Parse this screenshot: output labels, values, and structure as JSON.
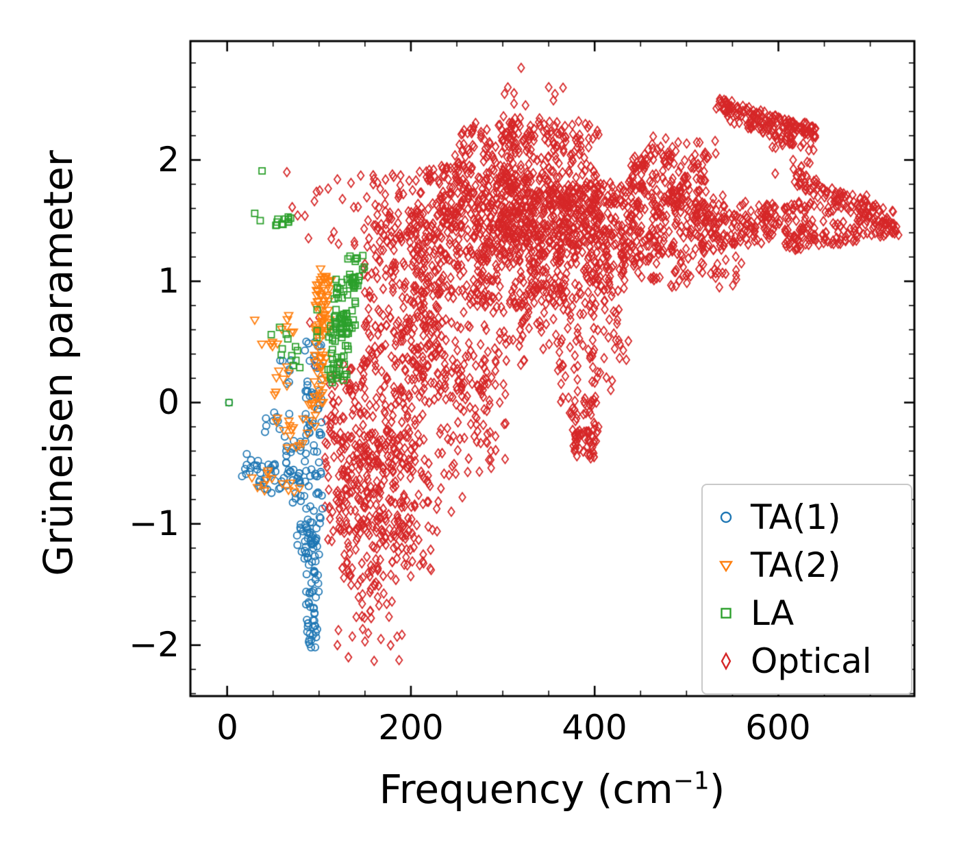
{
  "figure": {
    "background": "#ffffff"
  },
  "axes": {
    "ylabel": "Grüneisen parameter",
    "xlabel_prefix": "Frequency (cm",
    "xlabel_sup": "−1",
    "xlabel_suffix": ")",
    "xlim": [
      -40,
      748
    ],
    "ylim": [
      -2.42,
      2.98
    ],
    "xticks": {
      "values": [
        0,
        200,
        400,
        600
      ],
      "labels": [
        "0",
        "200",
        "400",
        "600"
      ]
    },
    "yticks": {
      "values": [
        2,
        1,
        0,
        -1,
        -2
      ],
      "labels": [
        "2",
        "1",
        "0",
        "−1",
        "−2"
      ]
    },
    "minor_x_step": 50,
    "minor_y_step": 0.2
  },
  "chart_data": {
    "type": "scatter",
    "title": "",
    "xlabel": "Frequency (cm⁻¹)",
    "ylabel": "Grüneisen parameter",
    "xlim": [
      -40,
      748
    ],
    "ylim": [
      -2.42,
      2.98
    ],
    "grid": false,
    "legend_position": "lower right",
    "draw_order": [
      3,
      0,
      1,
      2
    ],
    "series": [
      {
        "name": "TA(1)",
        "marker": "circle",
        "color": "#1f77b4",
        "seed": 7,
        "points": [
          [
            2,
            0.0
          ]
        ],
        "clusters": [
          {
            "kind": "box",
            "n": 10,
            "x": [
              16,
              34
            ],
            "y": [
              -0.62,
              -0.42
            ]
          },
          {
            "kind": "box",
            "n": 22,
            "x": [
              30,
              62
            ],
            "y": [
              -0.72,
              -0.5
            ]
          },
          {
            "kind": "box",
            "n": 16,
            "x": [
              48,
              80
            ],
            "y": [
              -0.75,
              -0.55
            ]
          },
          {
            "kind": "box",
            "n": 8,
            "x": [
              55,
              75
            ],
            "y": [
              -0.1,
              0.35
            ]
          },
          {
            "kind": "box",
            "n": 8,
            "x": [
              38,
              58
            ],
            "y": [
              -0.35,
              -0.08
            ]
          },
          {
            "kind": "box",
            "n": 14,
            "x": [
              60,
              85
            ],
            "y": [
              -0.5,
              -0.25
            ]
          },
          {
            "kind": "box",
            "n": 10,
            "x": [
              70,
              88
            ],
            "y": [
              -0.9,
              -0.6
            ]
          },
          {
            "kind": "box",
            "n": 70,
            "x": [
              84,
              104
            ],
            "y": [
              -1.0,
              0.52
            ]
          },
          {
            "kind": "box",
            "n": 45,
            "x": [
              84,
              100
            ],
            "y": [
              -1.6,
              -0.95
            ]
          },
          {
            "kind": "box",
            "n": 25,
            "x": [
              86,
              98
            ],
            "y": [
              -1.95,
              -1.55
            ]
          },
          {
            "kind": "box",
            "n": 8,
            "x": [
              88,
              97
            ],
            "y": [
              -2.02,
              -1.88
            ]
          },
          {
            "kind": "box",
            "n": 12,
            "x": [
              76,
              88
            ],
            "y": [
              -1.35,
              -0.95
            ]
          }
        ]
      },
      {
        "name": "TA(2)",
        "marker": "triangle-down",
        "color": "#ff7f0e",
        "seed": 11,
        "points": [
          [
            30,
            0.68
          ],
          [
            27,
            -0.62
          ],
          [
            33,
            -0.7
          ]
        ],
        "clusters": [
          {
            "kind": "box",
            "n": 5,
            "x": [
              36,
              58
            ],
            "y": [
              0.35,
              0.6
            ]
          },
          {
            "kind": "box",
            "n": 6,
            "x": [
              55,
              80
            ],
            "y": [
              0.55,
              0.75
            ]
          },
          {
            "kind": "box",
            "n": 8,
            "x": [
              45,
              72
            ],
            "y": [
              0.05,
              0.3
            ]
          },
          {
            "kind": "box",
            "n": 14,
            "x": [
              52,
              88
            ],
            "y": [
              -0.38,
              -0.08
            ]
          },
          {
            "kind": "box",
            "n": 6,
            "x": [
              38,
              55
            ],
            "y": [
              -0.75,
              -0.55
            ]
          },
          {
            "kind": "box",
            "n": 5,
            "x": [
              60,
              82
            ],
            "y": [
              -0.8,
              -0.65
            ]
          },
          {
            "kind": "box",
            "n": 30,
            "x": [
              94,
              108
            ],
            "y": [
              0.0,
              0.6
            ]
          },
          {
            "kind": "box",
            "n": 45,
            "x": [
              96,
              112
            ],
            "y": [
              0.55,
              1.0
            ]
          },
          {
            "kind": "box",
            "n": 10,
            "x": [
              100,
              113
            ],
            "y": [
              0.95,
              1.12
            ]
          },
          {
            "kind": "box",
            "n": 8,
            "x": [
              88,
              100
            ],
            "y": [
              -0.2,
              0.05
            ]
          }
        ]
      },
      {
        "name": "LA",
        "marker": "square",
        "color": "#2ca02c",
        "seed": 13,
        "points": [
          [
            2,
            0.0
          ],
          [
            38,
            1.91
          ],
          [
            30,
            1.56
          ],
          [
            36,
            1.5
          ],
          [
            57,
            0.62
          ],
          [
            48,
            0.56
          ]
        ],
        "clusters": [
          {
            "kind": "box",
            "n": 12,
            "x": [
              52,
              78
            ],
            "y": [
              1.46,
              1.54
            ]
          },
          {
            "kind": "box",
            "n": 5,
            "x": [
              58,
              80
            ],
            "y": [
              0.38,
              0.58
            ]
          },
          {
            "kind": "box",
            "n": 5,
            "x": [
              70,
              92
            ],
            "y": [
              0.26,
              0.5
            ]
          },
          {
            "kind": "box",
            "n": 4,
            "x": [
              95,
              112
            ],
            "y": [
              0.5,
              0.85
            ]
          },
          {
            "kind": "box",
            "n": 50,
            "x": [
              112,
              132
            ],
            "y": [
              0.15,
              0.7
            ]
          },
          {
            "kind": "box",
            "n": 45,
            "x": [
              116,
              140
            ],
            "y": [
              0.6,
              1.05
            ]
          },
          {
            "kind": "box",
            "n": 18,
            "x": [
              128,
              150
            ],
            "y": [
              0.95,
              1.22
            ]
          },
          {
            "kind": "box",
            "n": 4,
            "x": [
              108,
              120
            ],
            "y": [
              0.2,
              0.45
            ]
          }
        ]
      },
      {
        "name": "Optical",
        "marker": "diamond",
        "color": "#d62728",
        "seed": 3,
        "points": [
          [
            320,
            2.76
          ],
          [
            350,
            2.6
          ],
          [
            244,
            -0.9
          ],
          [
            256,
            -0.78
          ],
          [
            132,
            -2.1
          ],
          [
            150,
            -1.97
          ],
          [
            160,
            -2.13
          ],
          [
            120,
            -2.0
          ],
          [
            185,
            -1.93
          ],
          [
            95,
            0.3
          ],
          [
            90,
            0.66
          ],
          [
            100,
            0.7
          ],
          [
            65,
            1.9
          ]
        ],
        "clusters": [
          {
            "kind": "box",
            "n": 22,
            "x": [
              70,
              165
            ],
            "y": [
              1.3,
              1.95
            ]
          },
          {
            "kind": "box",
            "n": 120,
            "x": [
              106,
              150
            ],
            "y": [
              -1.15,
              0.35
            ]
          },
          {
            "kind": "box",
            "n": 150,
            "x": [
              118,
              205
            ],
            "y": [
              -1.1,
              -0.25
            ]
          },
          {
            "kind": "box",
            "n": 120,
            "x": [
              148,
              215
            ],
            "y": [
              -0.55,
              0.45
            ]
          },
          {
            "kind": "box",
            "n": 55,
            "x": [
              122,
              198
            ],
            "y": [
              -1.52,
              -1.02
            ]
          },
          {
            "kind": "box",
            "n": 22,
            "x": [
              126,
              180
            ],
            "y": [
              -1.82,
              -1.48
            ]
          },
          {
            "kind": "box",
            "n": 8,
            "x": [
              118,
              192
            ],
            "y": [
              -2.16,
              -1.86
            ]
          },
          {
            "kind": "box",
            "n": 60,
            "x": [
              158,
              235
            ],
            "y": [
              -1.25,
              -0.45
            ]
          },
          {
            "kind": "box",
            "n": 200,
            "x": [
              148,
              235
            ],
            "y": [
              0.3,
              1.5
            ]
          },
          {
            "kind": "box",
            "n": 110,
            "x": [
              158,
              245
            ],
            "y": [
              1.25,
              1.92
            ]
          },
          {
            "kind": "box",
            "n": 150,
            "x": [
              198,
              285
            ],
            "y": [
              0.0,
              1.25
            ]
          },
          {
            "kind": "box",
            "n": 80,
            "x": [
              228,
              305
            ],
            "y": [
              -0.6,
              0.35
            ]
          },
          {
            "kind": "box",
            "n": 45,
            "x": [
              205,
              255
            ],
            "y": [
              0.9,
              1.6
            ]
          },
          {
            "kind": "box",
            "n": 45,
            "x": [
              228,
              265
            ],
            "y": [
              1.45,
              2.0
            ]
          },
          {
            "kind": "box",
            "n": 280,
            "x": [
              248,
              335
            ],
            "y": [
              1.15,
              2.32
            ]
          },
          {
            "kind": "box",
            "n": 240,
            "x": [
              268,
              365
            ],
            "y": [
              0.78,
              1.9
            ]
          },
          {
            "kind": "box",
            "n": 280,
            "x": [
              298,
              405
            ],
            "y": [
              1.3,
              2.32
            ]
          },
          {
            "kind": "box",
            "n": 230,
            "x": [
              328,
              432
            ],
            "y": [
              0.9,
              1.8
            ]
          },
          {
            "kind": "box",
            "n": 12,
            "x": [
              295,
              372
            ],
            "y": [
              2.32,
              2.6
            ]
          },
          {
            "kind": "box",
            "n": 140,
            "x": [
              358,
              452
            ],
            "y": [
              1.2,
              1.82
            ]
          },
          {
            "kind": "box",
            "n": 55,
            "x": [
              358,
              402
            ],
            "y": [
              0.0,
              0.92
            ]
          },
          {
            "kind": "box",
            "n": 28,
            "x": [
              368,
              406
            ],
            "y": [
              -0.25,
              0.05
            ]
          },
          {
            "kind": "box",
            "n": 45,
            "x": [
              376,
              404
            ],
            "y": [
              -0.47,
              -0.22
            ]
          },
          {
            "kind": "box",
            "n": 32,
            "x": [
              398,
              428
            ],
            "y": [
              0.1,
              1.15
            ]
          },
          {
            "kind": "box",
            "n": 12,
            "x": [
              416,
              440
            ],
            "y": [
              0.35,
              0.95
            ]
          },
          {
            "kind": "box",
            "n": 20,
            "x": [
              336,
              368
            ],
            "y": [
              0.3,
              0.95
            ]
          },
          {
            "kind": "box",
            "n": 55,
            "x": [
              428,
              472
            ],
            "y": [
              1.0,
              1.48
            ]
          },
          {
            "kind": "box",
            "n": 170,
            "x": [
              438,
              522
            ],
            "y": [
              1.5,
              2.06
            ]
          },
          {
            "kind": "box",
            "n": 110,
            "x": [
              458,
              545
            ],
            "y": [
              1.22,
              1.72
            ]
          },
          {
            "kind": "box",
            "n": 22,
            "x": [
              448,
              532
            ],
            "y": [
              2.0,
              2.2
            ]
          },
          {
            "kind": "box",
            "n": 48,
            "x": [
              478,
              562
            ],
            "y": [
              0.95,
              1.32
            ]
          },
          {
            "kind": "band",
            "n": 130,
            "from": [
              534,
              2.47
            ],
            "to": [
              642,
              2.23
            ],
            "jx": 4,
            "jy": 0.05
          },
          {
            "kind": "band",
            "n": 55,
            "from": [
              545,
              2.36
            ],
            "to": [
              618,
              2.16
            ],
            "jx": 4,
            "jy": 0.05
          },
          {
            "kind": "box",
            "n": 18,
            "x": [
              588,
              652
            ],
            "y": [
              1.86,
              2.16
            ]
          },
          {
            "kind": "band",
            "n": 85,
            "from": [
              618,
              1.84
            ],
            "to": [
              726,
              1.5
            ],
            "jx": 5,
            "jy": 0.07
          },
          {
            "kind": "band",
            "n": 85,
            "from": [
              608,
              1.3
            ],
            "to": [
              728,
              1.44
            ],
            "jx": 5,
            "jy": 0.06
          },
          {
            "kind": "box",
            "n": 110,
            "x": [
              558,
              642
            ],
            "y": [
              1.34,
              1.66
            ]
          },
          {
            "kind": "box",
            "n": 55,
            "x": [
              515,
              582
            ],
            "y": [
              1.28,
              1.56
            ]
          },
          {
            "kind": "box",
            "n": 35,
            "x": [
              288,
              332
            ],
            "y": [
              0.3,
              0.92
            ]
          },
          {
            "kind": "box",
            "n": 10,
            "x": [
              195,
              225
            ],
            "y": [
              -1.45,
              -1.2
            ]
          },
          {
            "kind": "box",
            "n": 40,
            "x": [
              640,
              700
            ],
            "y": [
              1.45,
              1.75
            ]
          },
          {
            "kind": "box",
            "n": 10,
            "x": [
              700,
              730
            ],
            "y": [
              1.42,
              1.56
            ]
          }
        ]
      }
    ]
  }
}
